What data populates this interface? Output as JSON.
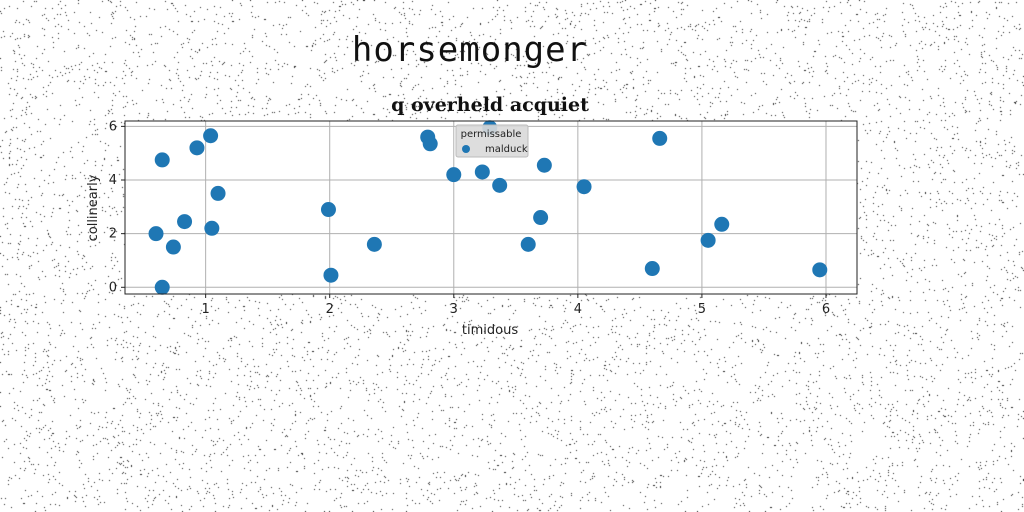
{
  "figure": {
    "suptitle": "horsemonger"
  },
  "chart_data": {
    "type": "scatter",
    "title": "q overheld acquiet",
    "xlabel": "timidous",
    "ylabel": "collinearly",
    "xlim": [
      0.35,
      6.25
    ],
    "ylim": [
      -0.25,
      6.2
    ],
    "xticks": [
      1,
      2,
      3,
      4,
      5,
      6
    ],
    "yticks": [
      0,
      2,
      4,
      6
    ],
    "grid": true,
    "legend": {
      "title": "permissable",
      "placement": "upper-center"
    },
    "series": [
      {
        "name": "malduck",
        "color": "#1f77b4",
        "points": [
          {
            "x": 0.6,
            "y": 2.0
          },
          {
            "x": 0.65,
            "y": 4.75
          },
          {
            "x": 0.65,
            "y": 0.0
          },
          {
            "x": 0.74,
            "y": 1.5
          },
          {
            "x": 0.83,
            "y": 2.45
          },
          {
            "x": 0.93,
            "y": 5.2
          },
          {
            "x": 1.04,
            "y": 5.65
          },
          {
            "x": 1.05,
            "y": 2.2
          },
          {
            "x": 1.1,
            "y": 3.5
          },
          {
            "x": 1.99,
            "y": 2.9
          },
          {
            "x": 2.01,
            "y": 0.45
          },
          {
            "x": 2.36,
            "y": 1.6
          },
          {
            "x": 2.79,
            "y": 5.6
          },
          {
            "x": 2.81,
            "y": 5.35
          },
          {
            "x": 3.0,
            "y": 4.2
          },
          {
            "x": 3.23,
            "y": 4.3
          },
          {
            "x": 3.29,
            "y": 5.95
          },
          {
            "x": 3.37,
            "y": 3.8
          },
          {
            "x": 3.6,
            "y": 1.6
          },
          {
            "x": 3.7,
            "y": 2.6
          },
          {
            "x": 3.73,
            "y": 4.55
          },
          {
            "x": 4.05,
            "y": 3.75
          },
          {
            "x": 4.6,
            "y": 0.7
          },
          {
            "x": 4.66,
            "y": 5.55
          },
          {
            "x": 5.05,
            "y": 1.75
          },
          {
            "x": 5.16,
            "y": 2.35
          },
          {
            "x": 5.95,
            "y": 0.65
          }
        ]
      }
    ]
  }
}
